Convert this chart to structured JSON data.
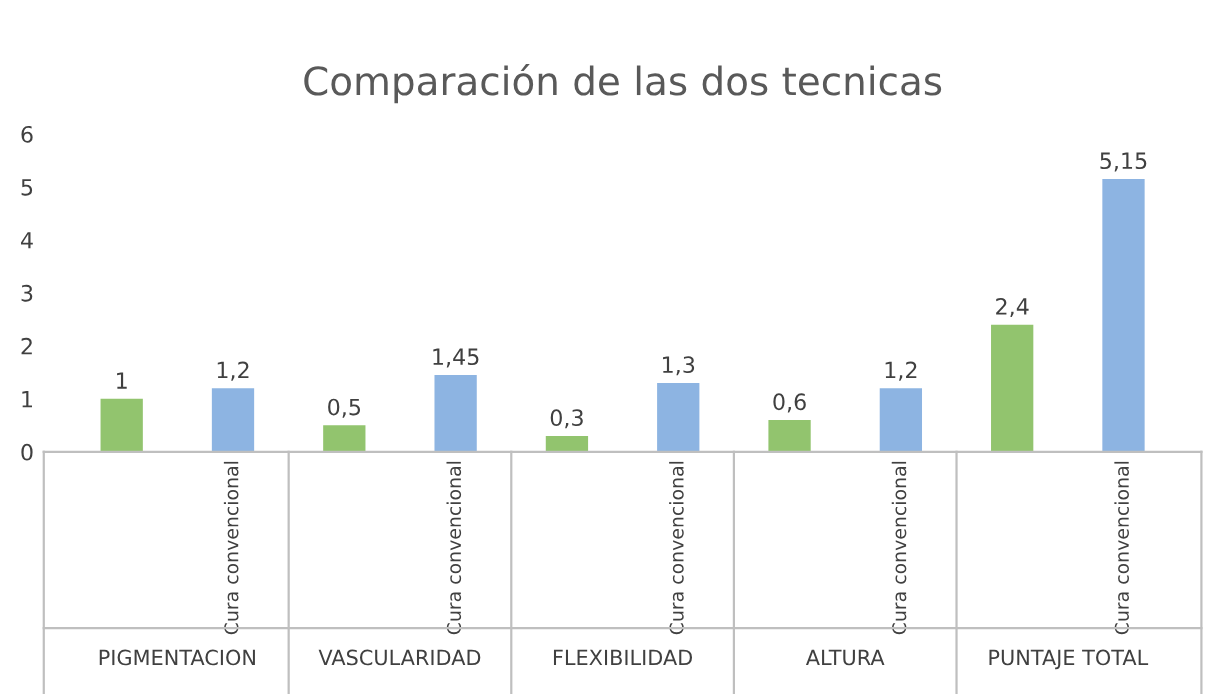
{
  "chart_data": {
    "type": "bar",
    "title": "Comparación de las dos tecnicas",
    "categories": [
      null,
      "Cura convencional",
      null,
      "Cura convencional",
      null,
      "Cura convencional",
      null,
      "Cura convencional",
      null,
      "Cura convencional"
    ],
    "values": [
      1,
      1.2,
      0.5,
      1.45,
      0.3,
      1.3,
      0.6,
      1.2,
      2.4,
      5.15
    ],
    "colors": [
      "#92c46e",
      "#8db4e2",
      "#92c46e",
      "#8db4e2",
      "#92c46e",
      "#8db4e2",
      "#92c46e",
      "#8db4e2",
      "#92c46e",
      "#8db4e2"
    ],
    "value_labels": [
      "1",
      "1,2",
      "0,5",
      "1,45",
      "0,3",
      "1,3",
      "0,6",
      "1,2",
      "2,4",
      "5,15"
    ],
    "annotations": [
      "PIGMENTACION",
      "VASCULARIDAD",
      "FLEXIBILIDAD",
      "ALTURA",
      "PUNTAJE TOTAL"
    ],
    "ylim": [
      0,
      6
    ],
    "yticks": [
      0,
      1,
      2,
      3,
      4,
      5,
      6
    ],
    "grid": false,
    "legend": false
  }
}
